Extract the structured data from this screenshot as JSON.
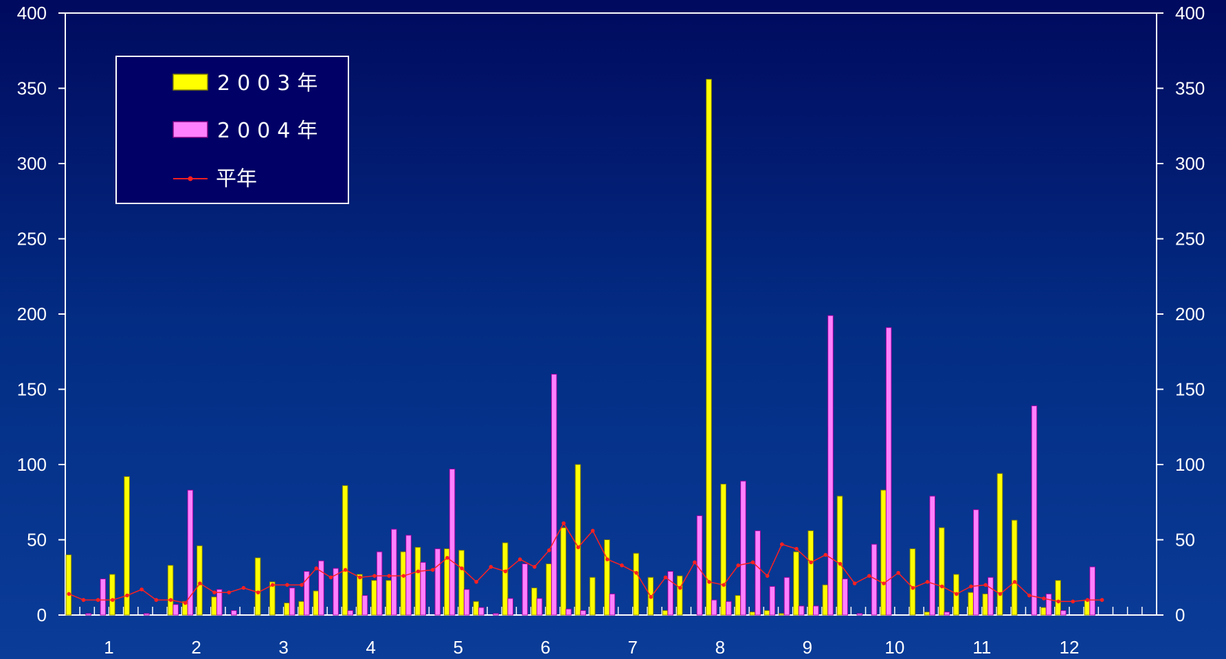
{
  "chart_data": {
    "type": "bar",
    "x_axis": {
      "labels": [
        "1",
        "2",
        "3",
        "4",
        "5",
        "6",
        "7",
        "8",
        "9",
        "10",
        "11",
        "12"
      ],
      "periods_per_label": 6
    },
    "y_axis": {
      "min": 0,
      "max": 400,
      "step": 50,
      "ticks": [
        "0",
        "50",
        "100",
        "150",
        "200",
        "250",
        "300",
        "350",
        "400"
      ]
    },
    "y_axis_right": {
      "ticks": [
        "0",
        "50",
        "100",
        "150",
        "200",
        "250",
        "300",
        "350",
        "400"
      ]
    },
    "legend": {
      "placement": "top-left"
    },
    "series": [
      {
        "name": "2003年",
        "type": "bar",
        "color": "#ffff00",
        "values": [
          40,
          0,
          0,
          27,
          92,
          0,
          0,
          33,
          9,
          46,
          12,
          0,
          0,
          38,
          22,
          8,
          9,
          16,
          0,
          86,
          27,
          23,
          23,
          42,
          45,
          0,
          44,
          43,
          9,
          0,
          48,
          0,
          18,
          34,
          58,
          100,
          25,
          50,
          0,
          41,
          25,
          3,
          26,
          0,
          356,
          87,
          13,
          2,
          3,
          1,
          42,
          56,
          20,
          79,
          0,
          0,
          83,
          0,
          44,
          2,
          58,
          27,
          15,
          14,
          94,
          63,
          0,
          5,
          23,
          0,
          10,
          0
        ]
      },
      {
        "name": "2004年",
        "type": "bar",
        "color": "#ff80ff",
        "values": [
          0,
          1,
          24,
          0,
          0,
          1,
          0,
          7,
          83,
          0,
          17,
          3,
          0,
          0,
          0,
          18,
          29,
          36,
          31,
          3,
          13,
          42,
          57,
          53,
          35,
          44,
          97,
          17,
          5,
          1,
          11,
          34,
          11,
          160,
          4,
          3,
          0,
          14,
          0,
          0,
          0,
          29,
          0,
          66,
          10,
          9,
          89,
          56,
          19,
          25,
          6,
          6,
          199,
          24,
          1,
          47,
          191,
          0,
          0,
          79,
          2,
          0,
          70,
          25,
          0,
          0,
          139,
          14,
          3,
          0,
          32,
          0
        ]
      },
      {
        "name": "平年",
        "type": "line",
        "color": "#ff2020",
        "values": [
          14,
          10,
          10,
          10,
          13,
          17,
          10,
          10,
          8,
          21,
          15,
          15,
          18,
          15,
          20,
          20,
          20,
          31,
          25,
          30,
          25,
          26,
          26,
          26,
          29,
          30,
          38,
          31,
          22,
          32,
          29,
          37,
          32,
          43,
          61,
          45,
          56,
          37,
          33,
          28,
          12,
          25,
          18,
          35,
          22,
          20,
          33,
          35,
          26,
          47,
          44,
          35,
          40,
          34,
          21,
          26,
          21,
          28,
          18,
          22,
          19,
          14,
          19,
          20,
          14,
          22,
          13,
          11,
          9,
          9,
          10,
          10
        ]
      }
    ]
  }
}
